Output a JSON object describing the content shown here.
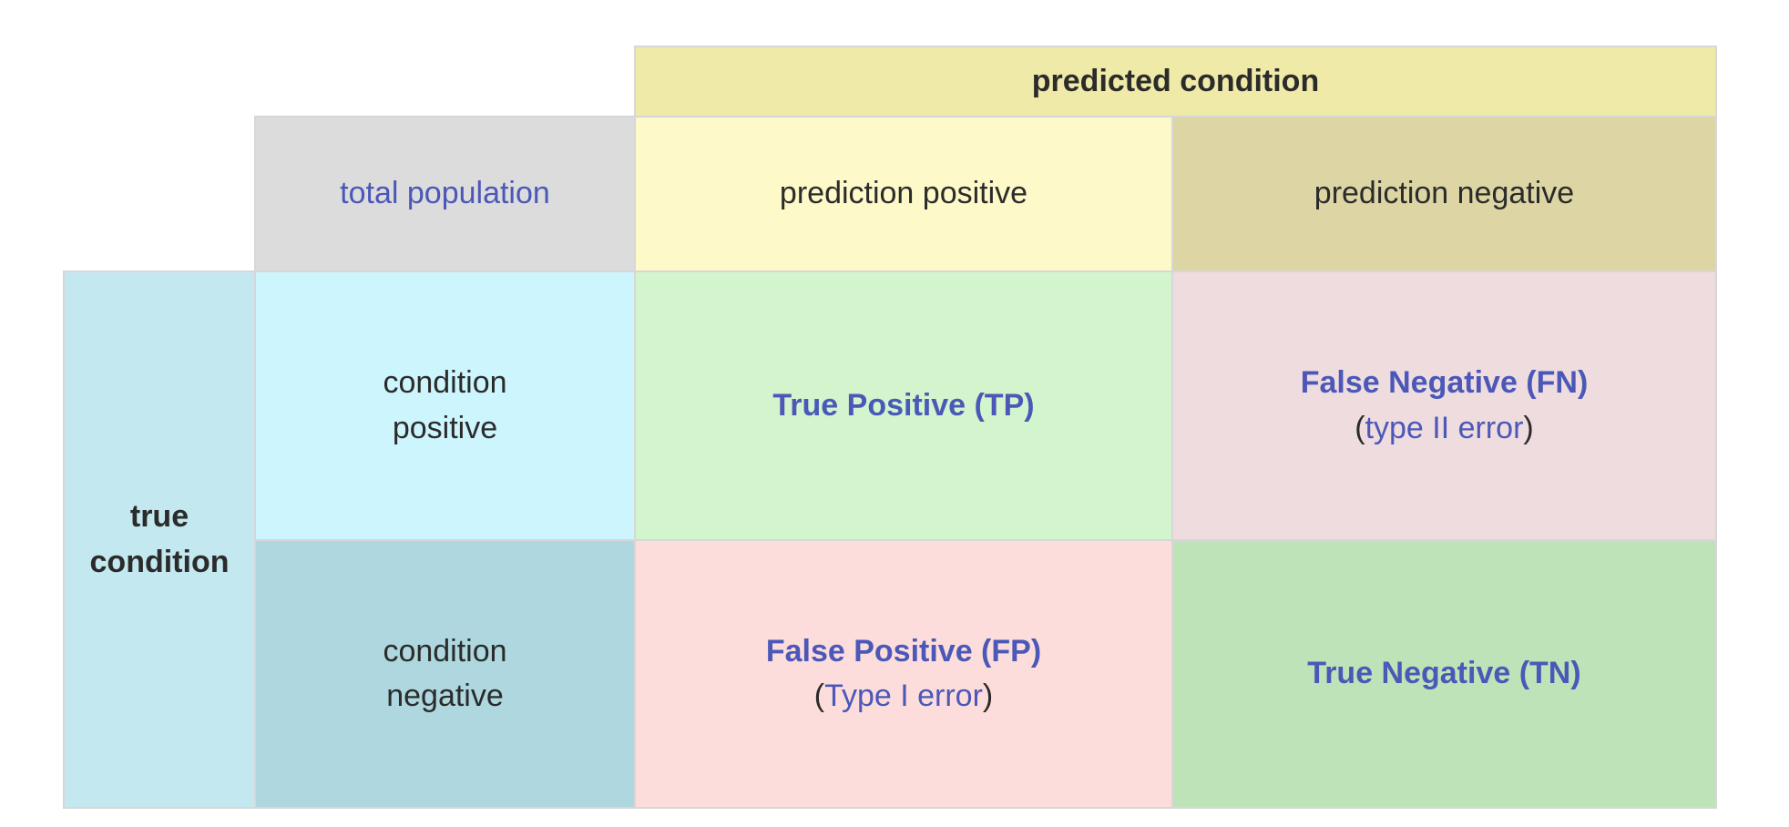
{
  "headers": {
    "predicted_condition": "predicted condition",
    "total_population": "total population",
    "prediction_positive": "prediction positive",
    "prediction_negative": "prediction negative",
    "true_condition": "true\ncondition",
    "condition_positive": "condition\npositive",
    "condition_negative": "condition\nnegative"
  },
  "cells": {
    "tp": {
      "label": "True Positive (TP)"
    },
    "fn": {
      "label": "False Negative (FN)",
      "note_open": "(",
      "note": "type II error",
      "note_close": ")"
    },
    "fp": {
      "label": "False Positive (FP)",
      "note_open": "(",
      "note": "Type I error",
      "note_close": ")"
    },
    "tn": {
      "label": "True Negative (TN)"
    }
  },
  "colors": {
    "predicted_condition_bg": "#efeaa8",
    "total_population_bg": "#dcdcdc",
    "prediction_positive_bg": "#fdf9c9",
    "prediction_negative_bg": "#ddd6a4",
    "true_condition_bg": "#c3e8ef",
    "condition_positive_bg": "#cdf5fd",
    "condition_negative_bg": "#aed7df",
    "tp_bg": "#d2f5cd",
    "fn_bg": "#efdcdf",
    "fp_bg": "#fddddb",
    "tn_bg": "#bfe3b8"
  }
}
